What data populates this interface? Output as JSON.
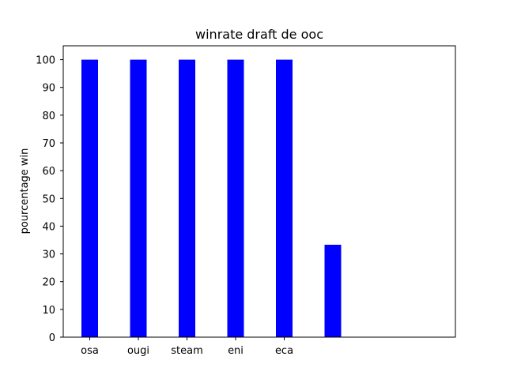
{
  "chart_data": {
    "type": "bar",
    "title": "winrate draft de ooc",
    "xlabel": "",
    "ylabel": "pourcentage win",
    "categories": [
      "osa",
      "ougi",
      "steam",
      "eni",
      "eca",
      ""
    ],
    "values": [
      100,
      100,
      100,
      100,
      100,
      33.3
    ],
    "ylim": [
      0,
      105
    ],
    "yticks": [
      0,
      10,
      20,
      30,
      40,
      50,
      60,
      70,
      80,
      90,
      100
    ],
    "grid": false,
    "legend": "none",
    "bar_color": "#0000ff"
  }
}
